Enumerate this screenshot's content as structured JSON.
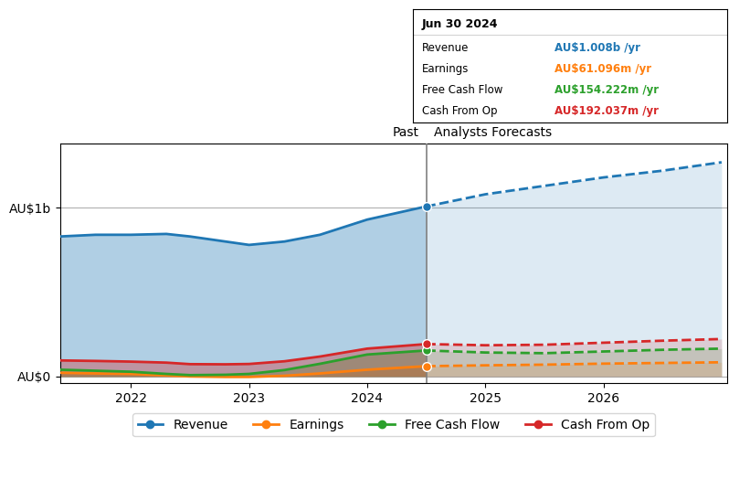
{
  "chart_data": {
    "type": "area",
    "xlim": [
      2021.4,
      2027.05
    ],
    "ylim": [
      -0.04,
      1.38
    ],
    "xticks": [
      2022,
      2023,
      2024,
      2025,
      2026
    ],
    "yticks": [
      {
        "value": 0,
        "label": "AU$0"
      },
      {
        "value": 1,
        "label": "AU$1b"
      }
    ],
    "grid": true,
    "legend": "upper center",
    "divider_x": 2024.5,
    "divider_labels": [
      "Past",
      "Analysts Forecasts"
    ],
    "tooltip": {
      "title": "Jun 30 2024",
      "rows": [
        {
          "label": "Revenue",
          "value": "AU$1.008b /yr"
        },
        {
          "label": "Earnings",
          "value": "AU$61.096m /yr"
        },
        {
          "label": "Free Cash Flow",
          "value": "AU$154.222m /yr"
        },
        {
          "label": "Cash From Op",
          "value": "AU$192.037m /yr"
        }
      ]
    },
    "series": [
      {
        "name": "Revenue",
        "marker_y": 1.008,
        "past_x": [
          2021.4,
          2021.7,
          2022.0,
          2022.3,
          2022.5,
          2022.8,
          2023.0,
          2023.3,
          2023.6,
          2024.0,
          2024.5
        ],
        "past_values": [
          0.83,
          0.84,
          0.84,
          0.845,
          0.83,
          0.8,
          0.78,
          0.8,
          0.84,
          0.93,
          1.008
        ],
        "future_x": [
          2024.5,
          2025.0,
          2025.5,
          2026.0,
          2026.5,
          2027.0
        ],
        "future_values": [
          1.008,
          1.08,
          1.13,
          1.18,
          1.22,
          1.27
        ]
      },
      {
        "name": "Earnings",
        "marker_y": 0.061,
        "past_x": [
          2021.4,
          2021.7,
          2022.0,
          2022.3,
          2022.5,
          2022.8,
          2023.0,
          2023.3,
          2023.6,
          2024.0,
          2024.5
        ],
        "past_values": [
          0.022,
          0.018,
          0.015,
          0.006,
          0.0,
          -0.003,
          -0.003,
          0.004,
          0.018,
          0.04,
          0.061
        ],
        "future_x": [
          2024.5,
          2025.0,
          2025.5,
          2026.0,
          2026.5,
          2027.0
        ],
        "future_values": [
          0.061,
          0.066,
          0.07,
          0.076,
          0.08,
          0.084
        ]
      },
      {
        "name": "Free Cash Flow",
        "marker_y": 0.154,
        "past_x": [
          2021.4,
          2021.7,
          2022.0,
          2022.3,
          2022.5,
          2022.8,
          2023.0,
          2023.3,
          2023.6,
          2024.0,
          2024.5
        ],
        "past_values": [
          0.04,
          0.034,
          0.028,
          0.015,
          0.008,
          0.01,
          0.015,
          0.038,
          0.075,
          0.13,
          0.154
        ],
        "future_x": [
          2024.5,
          2025.0,
          2025.5,
          2026.0,
          2026.5,
          2027.0
        ],
        "future_values": [
          0.154,
          0.142,
          0.138,
          0.148,
          0.158,
          0.165
        ]
      },
      {
        "name": "Cash From Op",
        "marker_y": 0.192,
        "past_x": [
          2021.4,
          2021.7,
          2022.0,
          2022.3,
          2022.5,
          2022.8,
          2023.0,
          2023.3,
          2023.6,
          2024.0,
          2024.5
        ],
        "past_values": [
          0.095,
          0.092,
          0.088,
          0.082,
          0.073,
          0.072,
          0.074,
          0.09,
          0.118,
          0.165,
          0.192
        ],
        "future_x": [
          2024.5,
          2025.0,
          2025.5,
          2026.0,
          2026.5,
          2027.0
        ],
        "future_values": [
          0.192,
          0.185,
          0.188,
          0.2,
          0.212,
          0.222
        ]
      }
    ]
  }
}
